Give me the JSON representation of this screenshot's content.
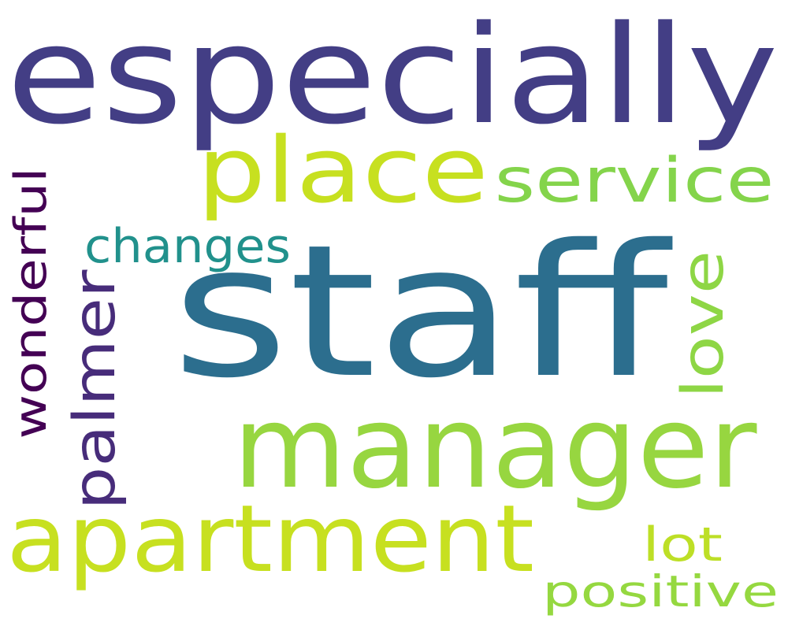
{
  "words": {
    "staff": {
      "text": "staff",
      "color": "#2C6E8E"
    },
    "especially": {
      "text": "especially",
      "color": "#433E85"
    },
    "manager": {
      "text": "manager",
      "color": "#97D640"
    },
    "place": {
      "text": "place",
      "color": "#C7E020"
    },
    "apartment": {
      "text": "apartment",
      "color": "#C7E020"
    },
    "service": {
      "text": "service",
      "color": "#84D44B"
    },
    "changes": {
      "text": "changes",
      "color": "#21918C"
    },
    "love": {
      "text": "love",
      "color": "#8ED645"
    },
    "palmer": {
      "text": "palmer",
      "color": "#472C7A"
    },
    "wonderful": {
      "text": "wonderful",
      "color": "#440154"
    },
    "lot": {
      "text": "lot",
      "color": "#BDDF26"
    },
    "positive": {
      "text": "positive",
      "color": "#95D840"
    }
  }
}
